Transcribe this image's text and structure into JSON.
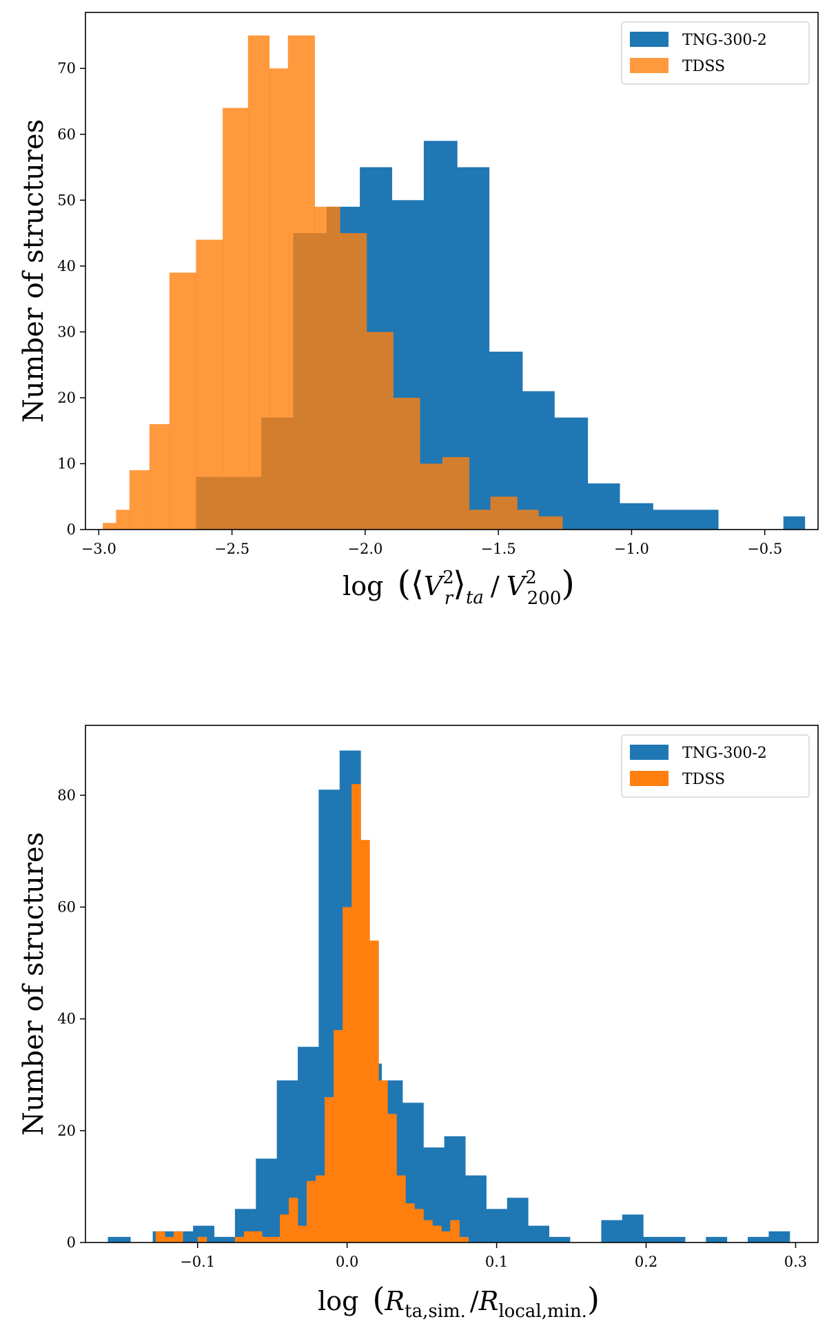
{
  "colors": {
    "tng": "#1f77b4",
    "tdss_top": "#ff7f0e",
    "tdss_top_alpha": 0.8,
    "tdss_bottom": "#ff7f0e",
    "axis": "#000000",
    "legend_border": "#cccccc"
  },
  "chart_data": [
    {
      "type": "bar",
      "histogram": true,
      "title": "",
      "xlabel": "log (⟨V_r^2⟩_ta / V_200^2)",
      "xlabel_parts": {
        "fn": "log",
        "V": "V",
        "r_sub": "r",
        "sq": "2",
        "ta_sub": "ta",
        "slash": "/",
        "V2": "V",
        "sub200": "200",
        "sq2": "2"
      },
      "ylabel": "Number of structures",
      "xlim": [
        -3.05,
        -0.3
      ],
      "ylim": [
        0,
        78.5
      ],
      "xticks": [
        -3.0,
        -2.5,
        -2.0,
        -1.5,
        -1.0,
        -0.5
      ],
      "xtick_labels": [
        "−3.0",
        "−2.5",
        "−2.0",
        "−1.5",
        "−1.0",
        "−0.5"
      ],
      "yticks": [
        0,
        10,
        20,
        30,
        40,
        50,
        60,
        70
      ],
      "ytick_labels": [
        "0",
        "10",
        "20",
        "30",
        "40",
        "50",
        "60",
        "70"
      ],
      "legend": [
        "TNG-300-2",
        "TDSS"
      ],
      "legend_position": "top-right",
      "series": [
        {
          "name": "TNG-300-2",
          "bin_edges": [
            -2.635,
            -2.39,
            -2.145,
            -1.9,
            -1.655,
            -1.41,
            -1.165,
            -0.92,
            -0.675,
            -0.43
          ],
          "bins": [
            [
              -2.635,
              -2.39,
              8
            ],
            [
              -2.39,
              -2.27,
              17
            ],
            [
              -2.27,
              -2.145,
              45
            ],
            [
              -2.145,
              -2.02,
              49
            ],
            [
              -2.02,
              -1.9,
              55
            ],
            [
              -1.9,
              -1.78,
              50
            ],
            [
              -1.78,
              -1.655,
              59
            ],
            [
              -1.655,
              -1.535,
              55
            ],
            [
              -1.535,
              -1.41,
              27
            ],
            [
              -1.41,
              -1.29,
              21
            ],
            [
              -1.29,
              -1.165,
              17
            ],
            [
              -1.165,
              -1.045,
              7
            ],
            [
              -1.045,
              -0.92,
              4
            ],
            [
              -0.92,
              -0.675,
              3
            ],
            [
              -0.43,
              -0.35,
              2
            ]
          ]
        },
        {
          "name": "TDSS",
          "bins": [
            [
              -2.985,
              -2.935,
              1
            ],
            [
              -2.935,
              -2.885,
              3
            ],
            [
              -2.885,
              -2.81,
              9
            ],
            [
              -2.81,
              -2.735,
              16
            ],
            [
              -2.735,
              -2.635,
              39
            ],
            [
              -2.635,
              -2.535,
              44
            ],
            [
              -2.535,
              -2.44,
              64
            ],
            [
              -2.44,
              -2.36,
              75
            ],
            [
              -2.36,
              -2.29,
              70
            ],
            [
              -2.29,
              -2.19,
              75
            ],
            [
              -2.19,
              -2.095,
              49
            ],
            [
              -2.095,
              -1.995,
              45
            ],
            [
              -1.995,
              -1.895,
              30
            ],
            [
              -1.895,
              -1.795,
              20
            ],
            [
              -1.795,
              -1.71,
              10
            ],
            [
              -1.71,
              -1.61,
              11
            ],
            [
              -1.61,
              -1.53,
              3
            ],
            [
              -1.53,
              -1.43,
              5
            ],
            [
              -1.43,
              -1.35,
              3
            ],
            [
              -1.35,
              -1.26,
              2
            ]
          ]
        }
      ]
    },
    {
      "type": "bar",
      "histogram": true,
      "title": "",
      "xlabel": "log (R_ta,sim. / R_local,min.)",
      "xlabel_parts": {
        "fn": "log",
        "R1": "R",
        "sub1": "ta,sim.",
        "slash": "/",
        "R2": "R",
        "sub2": "local,min."
      },
      "ylabel": "Number of structures",
      "xlim": [
        -0.175,
        0.315
      ],
      "ylim": [
        0,
        92.5
      ],
      "xticks": [
        -0.1,
        0.0,
        0.1,
        0.2,
        0.3
      ],
      "xtick_labels": [
        "−0.1",
        "0.0",
        "0.1",
        "0.2",
        "0.3"
      ],
      "yticks": [
        0,
        20,
        40,
        60,
        80
      ],
      "ytick_labels": [
        "0",
        "20",
        "40",
        "60",
        "80"
      ],
      "legend": [
        "TNG-300-2",
        "TDSS"
      ],
      "legend_position": "top-right",
      "series": [
        {
          "name": "TNG-300-2",
          "bins": [
            [
              -0.16,
              -0.145,
              1
            ],
            [
              -0.13,
              -0.117,
              2
            ],
            [
              -0.117,
              -0.103,
              2
            ],
            [
              -0.103,
              -0.089,
              3
            ],
            [
              -0.089,
              -0.075,
              1
            ],
            [
              -0.075,
              -0.061,
              6
            ],
            [
              -0.061,
              -0.047,
              15
            ],
            [
              -0.047,
              -0.033,
              29
            ],
            [
              -0.033,
              -0.019,
              35
            ],
            [
              -0.019,
              -0.005,
              81
            ],
            [
              -0.005,
              0.009,
              88
            ],
            [
              0.009,
              0.023,
              32
            ],
            [
              0.023,
              0.037,
              29
            ],
            [
              0.037,
              0.051,
              25
            ],
            [
              0.051,
              0.065,
              17
            ],
            [
              0.065,
              0.079,
              19
            ],
            [
              0.079,
              0.093,
              12
            ],
            [
              0.093,
              0.107,
              6
            ],
            [
              0.107,
              0.121,
              8
            ],
            [
              0.121,
              0.135,
              3
            ],
            [
              0.135,
              0.149,
              1
            ],
            [
              0.17,
              0.184,
              4
            ],
            [
              0.184,
              0.198,
              5
            ],
            [
              0.198,
              0.212,
              1
            ],
            [
              0.212,
              0.226,
              1
            ],
            [
              0.24,
              0.254,
              1
            ],
            [
              0.268,
              0.282,
              1
            ],
            [
              0.282,
              0.296,
              2
            ]
          ]
        },
        {
          "name": "TDSS",
          "bins": [
            [
              -0.128,
              -0.122,
              2
            ],
            [
              -0.122,
              -0.116,
              1
            ],
            [
              -0.116,
              -0.11,
              2
            ],
            [
              -0.1,
              -0.094,
              1
            ],
            [
              -0.075,
              -0.069,
              1
            ],
            [
              -0.069,
              -0.063,
              2
            ],
            [
              -0.063,
              -0.057,
              2
            ],
            [
              -0.057,
              -0.051,
              1
            ],
            [
              -0.051,
              -0.045,
              1
            ],
            [
              -0.045,
              -0.039,
              5
            ],
            [
              -0.039,
              -0.033,
              8
            ],
            [
              -0.033,
              -0.027,
              3
            ],
            [
              -0.027,
              -0.021,
              11
            ],
            [
              -0.021,
              -0.015,
              12
            ],
            [
              -0.015,
              -0.009,
              26
            ],
            [
              -0.009,
              -0.003,
              38
            ],
            [
              -0.003,
              0.003,
              60
            ],
            [
              0.003,
              0.009,
              82
            ],
            [
              0.009,
              0.015,
              72
            ],
            [
              0.015,
              0.021,
              54
            ],
            [
              0.021,
              0.027,
              29
            ],
            [
              0.027,
              0.033,
              23
            ],
            [
              0.033,
              0.039,
              12
            ],
            [
              0.039,
              0.045,
              7
            ],
            [
              0.045,
              0.051,
              6
            ],
            [
              0.051,
              0.057,
              4
            ],
            [
              0.057,
              0.063,
              3
            ],
            [
              0.063,
              0.069,
              2
            ],
            [
              0.069,
              0.075,
              4
            ],
            [
              0.075,
              0.081,
              1
            ]
          ]
        }
      ]
    }
  ]
}
